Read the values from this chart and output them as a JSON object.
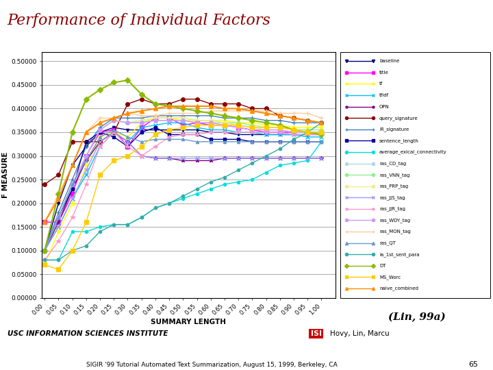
{
  "title": "Performance of Individual Factors",
  "xlabel": "SUMMARY LENGTH",
  "ylabel": "F MEASURE",
  "subtitle": "(Lin, 99a)",
  "footer_left": "USC INFORMATION SCIENCES INSTITUTE",
  "footer_right": "Hovy, Lin, Marcu",
  "page_number": "65",
  "sigir_text": "SIGIR '99 Tutorial Automated Text Summarization, August 15, 1999, Berkeley, CA",
  "x_ticks": [
    0.0,
    0.05,
    0.1,
    0.15,
    0.2,
    0.25,
    0.3,
    0.35,
    0.4,
    0.45,
    0.5,
    0.55,
    0.6,
    0.65,
    0.7,
    0.75,
    0.8,
    0.85,
    0.9,
    0.95,
    1.0
  ],
  "ylim": [
    0.0,
    0.52
  ],
  "xlim": [
    -0.01,
    1.05
  ],
  "series": [
    {
      "name": "baseline",
      "color": "#000080",
      "marker": "v",
      "markersize": 3,
      "linewidth": 1.0,
      "x": [
        0.0,
        0.05,
        0.1,
        0.15,
        0.2,
        0.25,
        0.3,
        0.35,
        0.4,
        0.45,
        0.5,
        0.55,
        0.6,
        0.65,
        0.7,
        0.75,
        0.8,
        0.85,
        0.9,
        0.95,
        1.0
      ],
      "y": [
        0.1,
        0.2,
        0.28,
        0.32,
        0.35,
        0.36,
        0.355,
        0.355,
        0.355,
        0.355,
        0.355,
        0.355,
        0.35,
        0.35,
        0.345,
        0.345,
        0.345,
        0.345,
        0.345,
        0.345,
        0.345
      ]
    },
    {
      "name": "title",
      "color": "#FF00FF",
      "marker": "s",
      "markersize": 4,
      "linewidth": 1.0,
      "x": [
        0.0,
        0.05,
        0.1,
        0.15,
        0.2,
        0.25,
        0.3,
        0.35,
        0.4,
        0.45,
        0.5,
        0.55,
        0.6,
        0.65,
        0.7,
        0.75,
        0.8,
        0.85,
        0.9,
        0.95,
        1.0
      ],
      "y": [
        0.16,
        0.16,
        0.22,
        0.3,
        0.35,
        0.355,
        0.32,
        0.36,
        0.38,
        0.38,
        0.365,
        0.37,
        0.365,
        0.365,
        0.36,
        0.355,
        0.35,
        0.35,
        0.35,
        0.35,
        0.35
      ]
    },
    {
      "name": "tf",
      "color": "#FFFF00",
      "marker": "*",
      "markersize": 5,
      "linewidth": 1.0,
      "x": [
        0.0,
        0.05,
        0.1,
        0.15,
        0.2,
        0.25,
        0.3,
        0.35,
        0.4,
        0.45,
        0.5,
        0.55,
        0.6,
        0.65,
        0.7,
        0.75,
        0.8,
        0.85,
        0.9,
        0.95,
        1.0
      ],
      "y": [
        0.07,
        0.14,
        0.2,
        0.28,
        0.34,
        0.35,
        0.34,
        0.37,
        0.38,
        0.38,
        0.375,
        0.375,
        0.375,
        0.375,
        0.37,
        0.37,
        0.365,
        0.365,
        0.36,
        0.36,
        0.36
      ]
    },
    {
      "name": "tfidf",
      "color": "#00BFFF",
      "marker": "x",
      "markersize": 4,
      "linewidth": 1.0,
      "x": [
        0.0,
        0.05,
        0.1,
        0.15,
        0.2,
        0.25,
        0.3,
        0.35,
        0.4,
        0.45,
        0.5,
        0.55,
        0.6,
        0.65,
        0.7,
        0.75,
        0.8,
        0.85,
        0.9,
        0.95,
        1.0
      ],
      "y": [
        0.1,
        0.15,
        0.21,
        0.26,
        0.32,
        0.35,
        0.33,
        0.36,
        0.365,
        0.37,
        0.37,
        0.36,
        0.355,
        0.355,
        0.35,
        0.35,
        0.345,
        0.345,
        0.345,
        0.34,
        0.34
      ]
    },
    {
      "name": "OPN",
      "color": "#800080",
      "marker": "*",
      "markersize": 4,
      "linewidth": 1.0,
      "x": [
        0.0,
        0.05,
        0.1,
        0.15,
        0.2,
        0.25,
        0.3,
        0.35,
        0.4,
        0.45,
        0.5,
        0.55,
        0.6,
        0.65,
        0.7,
        0.75,
        0.8,
        0.85,
        0.9,
        0.95,
        1.0
      ],
      "y": [
        0.1,
        0.16,
        0.23,
        0.29,
        0.33,
        0.35,
        0.33,
        0.3,
        0.295,
        0.295,
        0.29,
        0.29,
        0.29,
        0.295,
        0.295,
        0.295,
        0.295,
        0.295,
        0.295,
        0.295,
        0.295
      ]
    },
    {
      "name": "query_signature",
      "color": "#8B0000",
      "marker": "o",
      "markersize": 4,
      "linewidth": 1.0,
      "x": [
        0.0,
        0.05,
        0.1,
        0.15,
        0.2,
        0.25,
        0.3,
        0.35,
        0.4,
        0.45,
        0.5,
        0.55,
        0.6,
        0.65,
        0.7,
        0.75,
        0.8,
        0.85,
        0.9,
        0.95,
        1.0
      ],
      "y": [
        0.24,
        0.26,
        0.33,
        0.33,
        0.33,
        0.35,
        0.41,
        0.42,
        0.41,
        0.41,
        0.42,
        0.42,
        0.41,
        0.41,
        0.41,
        0.4,
        0.4,
        0.385,
        0.38,
        0.375,
        0.37
      ]
    },
    {
      "name": "IR_signature",
      "color": "#4080C0",
      "marker": "+",
      "markersize": 4,
      "linewidth": 1.0,
      "x": [
        0.0,
        0.05,
        0.1,
        0.15,
        0.2,
        0.25,
        0.3,
        0.35,
        0.4,
        0.45,
        0.5,
        0.55,
        0.6,
        0.65,
        0.7,
        0.75,
        0.8,
        0.85,
        0.9,
        0.95,
        1.0
      ],
      "y": [
        0.1,
        0.18,
        0.25,
        0.32,
        0.36,
        0.38,
        0.38,
        0.38,
        0.385,
        0.385,
        0.385,
        0.385,
        0.385,
        0.38,
        0.38,
        0.38,
        0.375,
        0.375,
        0.37,
        0.37,
        0.37
      ]
    },
    {
      "name": "sentence_length",
      "color": "#000099",
      "marker": "s",
      "markersize": 3,
      "linewidth": 1.0,
      "x": [
        0.0,
        0.05,
        0.1,
        0.15,
        0.2,
        0.25,
        0.3,
        0.35,
        0.4,
        0.45,
        0.5,
        0.55,
        0.6,
        0.65,
        0.7,
        0.75,
        0.8,
        0.85,
        0.9,
        0.95,
        1.0
      ],
      "y": [
        0.1,
        0.17,
        0.23,
        0.33,
        0.35,
        0.34,
        0.32,
        0.35,
        0.36,
        0.345,
        0.345,
        0.345,
        0.335,
        0.335,
        0.335,
        0.33,
        0.33,
        0.33,
        0.33,
        0.33,
        0.33
      ]
    },
    {
      "name": "average_exical_connectivity",
      "color": "#00DDDD",
      "marker": "o",
      "markersize": 3,
      "linewidth": 1.0,
      "x": [
        0.0,
        0.05,
        0.1,
        0.15,
        0.2,
        0.25,
        0.3,
        0.35,
        0.4,
        0.45,
        0.5,
        0.55,
        0.6,
        0.65,
        0.7,
        0.75,
        0.8,
        0.85,
        0.9,
        0.95,
        1.0
      ],
      "y": [
        0.08,
        0.08,
        0.14,
        0.14,
        0.15,
        0.155,
        0.155,
        0.17,
        0.19,
        0.2,
        0.21,
        0.22,
        0.23,
        0.24,
        0.245,
        0.25,
        0.265,
        0.28,
        0.285,
        0.29,
        0.33
      ]
    },
    {
      "name": "ras_CD_tag",
      "color": "#ADD8E6",
      "marker": "o",
      "markersize": 3,
      "linewidth": 1.0,
      "x": [
        0.0,
        0.05,
        0.1,
        0.15,
        0.2,
        0.25,
        0.3,
        0.35,
        0.4,
        0.45,
        0.5,
        0.55,
        0.6,
        0.65,
        0.7,
        0.75,
        0.8,
        0.85,
        0.9,
        0.95,
        1.0
      ],
      "y": [
        0.1,
        0.17,
        0.24,
        0.3,
        0.355,
        0.375,
        0.37,
        0.37,
        0.375,
        0.375,
        0.375,
        0.37,
        0.37,
        0.37,
        0.365,
        0.36,
        0.355,
        0.355,
        0.35,
        0.35,
        0.35
      ]
    },
    {
      "name": "ras_VNN_tag",
      "color": "#90EE90",
      "marker": "o",
      "markersize": 3,
      "linewidth": 1.0,
      "x": [
        0.0,
        0.05,
        0.1,
        0.15,
        0.2,
        0.25,
        0.3,
        0.35,
        0.4,
        0.45,
        0.5,
        0.55,
        0.6,
        0.65,
        0.7,
        0.75,
        0.8,
        0.85,
        0.9,
        0.95,
        1.0
      ],
      "y": [
        0.1,
        0.17,
        0.24,
        0.3,
        0.355,
        0.375,
        0.37,
        0.375,
        0.38,
        0.38,
        0.38,
        0.375,
        0.375,
        0.37,
        0.37,
        0.365,
        0.36,
        0.36,
        0.355,
        0.355,
        0.355
      ]
    },
    {
      "name": "ras_PRP_tag",
      "color": "#EEEE88",
      "marker": "o",
      "markersize": 3,
      "linewidth": 1.0,
      "x": [
        0.0,
        0.05,
        0.1,
        0.15,
        0.2,
        0.25,
        0.3,
        0.35,
        0.4,
        0.45,
        0.5,
        0.55,
        0.6,
        0.65,
        0.7,
        0.75,
        0.8,
        0.85,
        0.9,
        0.95,
        1.0
      ],
      "y": [
        0.1,
        0.17,
        0.24,
        0.3,
        0.355,
        0.375,
        0.37,
        0.375,
        0.38,
        0.38,
        0.38,
        0.375,
        0.375,
        0.37,
        0.365,
        0.36,
        0.355,
        0.355,
        0.35,
        0.35,
        0.35
      ]
    },
    {
      "name": "ras_JJS_tag",
      "color": "#9999FF",
      "marker": "x",
      "markersize": 4,
      "linewidth": 1.0,
      "x": [
        0.0,
        0.05,
        0.1,
        0.15,
        0.2,
        0.25,
        0.3,
        0.35,
        0.4,
        0.45,
        0.5,
        0.55,
        0.6,
        0.65,
        0.7,
        0.75,
        0.8,
        0.85,
        0.9,
        0.95,
        1.0
      ],
      "y": [
        0.1,
        0.15,
        0.21,
        0.27,
        0.33,
        0.35,
        0.33,
        0.3,
        0.295,
        0.295,
        0.295,
        0.295,
        0.295,
        0.295,
        0.295,
        0.295,
        0.295,
        0.295,
        0.295,
        0.295,
        0.295
      ]
    },
    {
      "name": "ras_JJR_tag",
      "color": "#FF99CC",
      "marker": "*",
      "markersize": 4,
      "linewidth": 1.0,
      "x": [
        0.0,
        0.05,
        0.1,
        0.15,
        0.2,
        0.25,
        0.3,
        0.35,
        0.4,
        0.45,
        0.5,
        0.55,
        0.6,
        0.65,
        0.7,
        0.75,
        0.8,
        0.85,
        0.9,
        0.95,
        1.0
      ],
      "y": [
        0.08,
        0.12,
        0.17,
        0.24,
        0.32,
        0.35,
        0.32,
        0.3,
        0.32,
        0.34,
        0.345,
        0.345,
        0.35,
        0.35,
        0.35,
        0.35,
        0.35,
        0.35,
        0.345,
        0.345,
        0.345
      ]
    },
    {
      "name": "ras_WDY_tag",
      "color": "#CC99FF",
      "marker": "o",
      "markersize": 4,
      "linewidth": 1.0,
      "x": [
        0.0,
        0.05,
        0.1,
        0.15,
        0.2,
        0.25,
        0.3,
        0.35,
        0.4,
        0.45,
        0.5,
        0.55,
        0.6,
        0.65,
        0.7,
        0.75,
        0.8,
        0.85,
        0.9,
        0.95,
        1.0
      ],
      "y": [
        0.1,
        0.17,
        0.24,
        0.3,
        0.355,
        0.375,
        0.37,
        0.37,
        0.375,
        0.375,
        0.375,
        0.37,
        0.37,
        0.365,
        0.36,
        0.355,
        0.355,
        0.355,
        0.35,
        0.35,
        0.35
      ]
    },
    {
      "name": "ras_MON_tag",
      "color": "#FFCC99",
      "marker": "+",
      "markersize": 4,
      "linewidth": 1.0,
      "x": [
        0.0,
        0.05,
        0.1,
        0.15,
        0.2,
        0.25,
        0.3,
        0.35,
        0.4,
        0.45,
        0.5,
        0.55,
        0.6,
        0.65,
        0.7,
        0.75,
        0.8,
        0.85,
        0.9,
        0.95,
        1.0
      ],
      "y": [
        0.16,
        0.22,
        0.28,
        0.35,
        0.38,
        0.38,
        0.39,
        0.385,
        0.385,
        0.39,
        0.39,
        0.39,
        0.395,
        0.395,
        0.395,
        0.395,
        0.395,
        0.39,
        0.39,
        0.39,
        0.38
      ]
    },
    {
      "name": "ras_QT",
      "color": "#6699CC",
      "marker": "^",
      "markersize": 3,
      "linewidth": 1.0,
      "x": [
        0.0,
        0.05,
        0.1,
        0.15,
        0.2,
        0.25,
        0.3,
        0.35,
        0.4,
        0.45,
        0.5,
        0.55,
        0.6,
        0.65,
        0.7,
        0.75,
        0.8,
        0.85,
        0.9,
        0.95,
        1.0
      ],
      "y": [
        0.1,
        0.17,
        0.24,
        0.29,
        0.34,
        0.355,
        0.34,
        0.33,
        0.335,
        0.335,
        0.335,
        0.33,
        0.33,
        0.33,
        0.33,
        0.33,
        0.33,
        0.33,
        0.33,
        0.33,
        0.33
      ]
    },
    {
      "name": "ia_1st_sent_para",
      "color": "#33AAAA",
      "marker": "o",
      "markersize": 3,
      "linewidth": 1.0,
      "x": [
        0.0,
        0.05,
        0.1,
        0.15,
        0.2,
        0.25,
        0.3,
        0.35,
        0.4,
        0.45,
        0.5,
        0.55,
        0.6,
        0.65,
        0.7,
        0.75,
        0.8,
        0.85,
        0.9,
        0.95,
        1.0
      ],
      "y": [
        0.08,
        0.08,
        0.1,
        0.11,
        0.14,
        0.155,
        0.155,
        0.17,
        0.19,
        0.2,
        0.215,
        0.23,
        0.245,
        0.255,
        0.27,
        0.285,
        0.3,
        0.315,
        0.335,
        0.35,
        0.37
      ]
    },
    {
      "name": "DT",
      "color": "#88BB00",
      "marker": "D",
      "markersize": 4,
      "linewidth": 1.5,
      "x": [
        0.0,
        0.05,
        0.1,
        0.15,
        0.2,
        0.25,
        0.3,
        0.35,
        0.4,
        0.45,
        0.5,
        0.55,
        0.6,
        0.65,
        0.7,
        0.75,
        0.8,
        0.85,
        0.9,
        0.95,
        1.0
      ],
      "y": [
        0.1,
        0.22,
        0.35,
        0.42,
        0.44,
        0.455,
        0.46,
        0.43,
        0.41,
        0.405,
        0.4,
        0.395,
        0.39,
        0.385,
        0.38,
        0.375,
        0.37,
        0.365,
        0.355,
        0.35,
        0.345
      ]
    },
    {
      "name": "MS_Worc",
      "color": "#FFCC00",
      "marker": "s",
      "markersize": 5,
      "linewidth": 1.0,
      "x": [
        0.0,
        0.05,
        0.1,
        0.15,
        0.2,
        0.25,
        0.3,
        0.35,
        0.4,
        0.45,
        0.5,
        0.55,
        0.6,
        0.65,
        0.7,
        0.75,
        0.8,
        0.85,
        0.9,
        0.95,
        1.0
      ],
      "y": [
        0.07,
        0.06,
        0.1,
        0.16,
        0.26,
        0.29,
        0.3,
        0.32,
        0.345,
        0.355,
        0.36,
        0.365,
        0.365,
        0.365,
        0.365,
        0.36,
        0.36,
        0.36,
        0.355,
        0.35,
        0.35
      ]
    },
    {
      "name": "naive_combined",
      "color": "#FF8C00",
      "marker": "^",
      "markersize": 5,
      "linewidth": 1.5,
      "x": [
        0.0,
        0.05,
        0.1,
        0.15,
        0.2,
        0.25,
        0.3,
        0.35,
        0.4,
        0.45,
        0.5,
        0.55,
        0.6,
        0.65,
        0.7,
        0.75,
        0.8,
        0.85,
        0.9,
        0.95,
        1.0
      ],
      "y": [
        0.16,
        0.21,
        0.28,
        0.35,
        0.37,
        0.38,
        0.39,
        0.395,
        0.4,
        0.405,
        0.405,
        0.405,
        0.405,
        0.4,
        0.4,
        0.395,
        0.39,
        0.385,
        0.38,
        0.375,
        0.37
      ]
    }
  ],
  "background_color": "#FFFFFF",
  "plot_bg_color": "#FFFFFF",
  "grid_color": "#888888",
  "title_color": "#8B0000",
  "title_fontsize": 16,
  "teal_bar_color": "#20B8B8",
  "footer_line_color": "#CC0000"
}
